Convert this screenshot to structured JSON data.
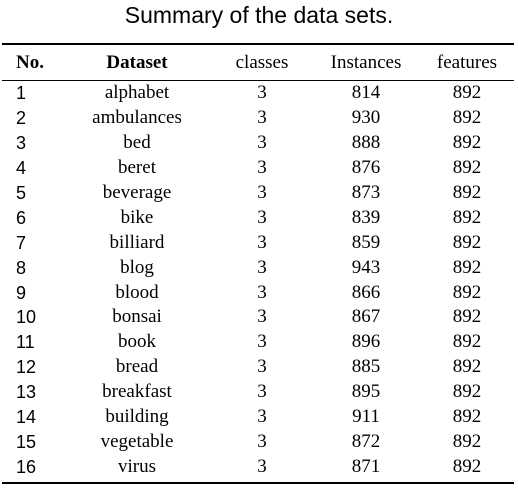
{
  "caption": "Summary of the data sets.",
  "table": {
    "headers": [
      "No.",
      "Dataset",
      "classes",
      "Instances",
      "features"
    ],
    "rows": [
      [
        "1",
        "alphabet",
        "3",
        "814",
        "892"
      ],
      [
        "2",
        "ambulances",
        "3",
        "930",
        "892"
      ],
      [
        "3",
        "bed",
        "3",
        "888",
        "892"
      ],
      [
        "4",
        "beret",
        "3",
        "876",
        "892"
      ],
      [
        "5",
        "beverage",
        "3",
        "873",
        "892"
      ],
      [
        "6",
        "bike",
        "3",
        "839",
        "892"
      ],
      [
        "7",
        "billiard",
        "3",
        "859",
        "892"
      ],
      [
        "8",
        "blog",
        "3",
        "943",
        "892"
      ],
      [
        "9",
        "blood",
        "3",
        "866",
        "892"
      ],
      [
        "10",
        "bonsai",
        "3",
        "867",
        "892"
      ],
      [
        "11",
        "book",
        "3",
        "896",
        "892"
      ],
      [
        "12",
        "bread",
        "3",
        "885",
        "892"
      ],
      [
        "13",
        "breakfast",
        "3",
        "895",
        "892"
      ],
      [
        "14",
        "building",
        "3",
        "911",
        "892"
      ],
      [
        "15",
        "vegetable",
        "3",
        "872",
        "892"
      ],
      [
        "16",
        "virus",
        "3",
        "871",
        "892"
      ]
    ]
  }
}
